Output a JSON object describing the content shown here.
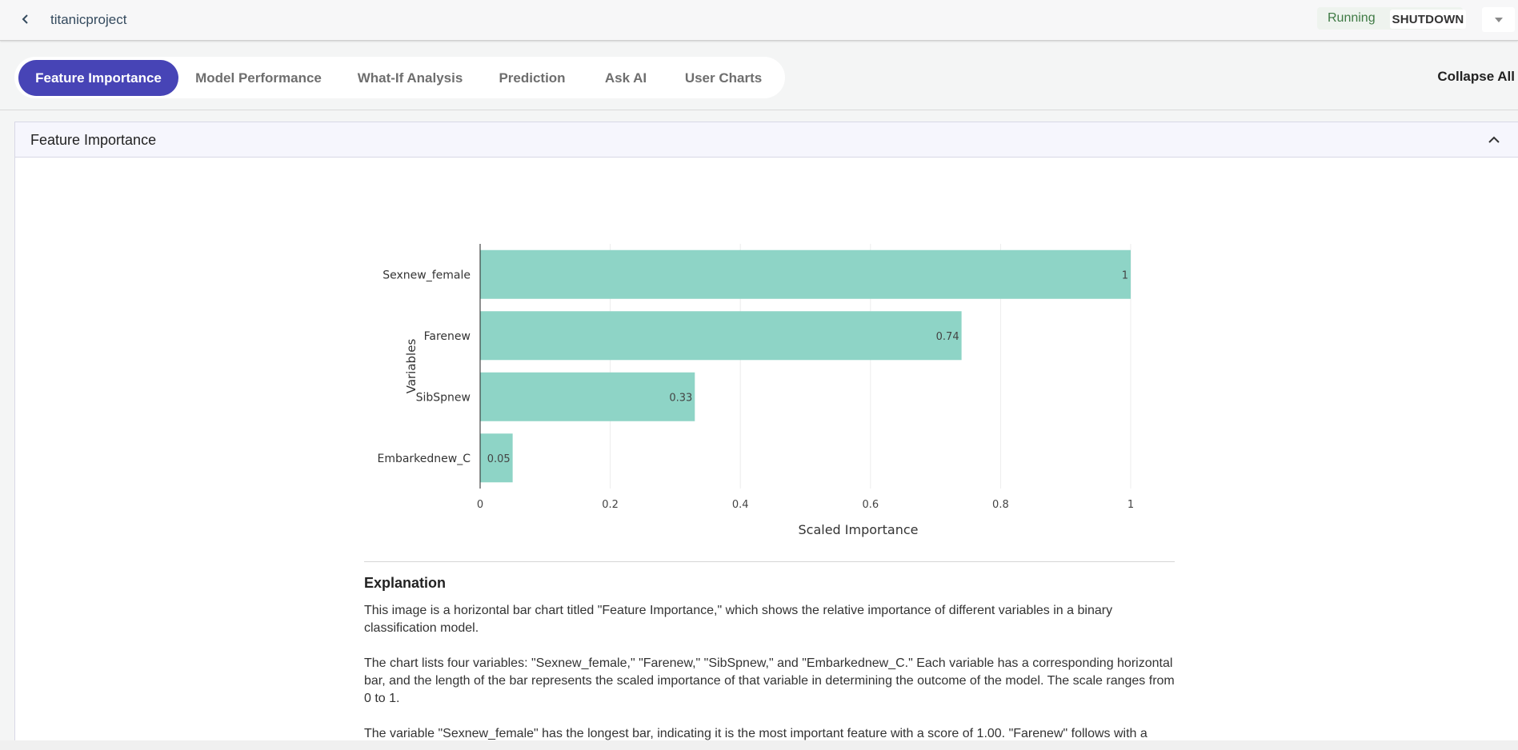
{
  "app": {
    "project_title": "titanicproject",
    "status": "Running",
    "shutdown_label": "SHUTDOWN"
  },
  "tabs": [
    {
      "label": "Feature Importance",
      "active": true
    },
    {
      "label": "Model Performance",
      "active": false
    },
    {
      "label": "What-If Analysis",
      "active": false
    },
    {
      "label": "Prediction",
      "active": false
    },
    {
      "label": "Ask AI",
      "active": false
    },
    {
      "label": "User Charts",
      "active": false
    }
  ],
  "collapse_all_label": "Collapse All",
  "panel": {
    "title": "Feature Importance"
  },
  "chart_data": {
    "type": "bar",
    "orientation": "horizontal",
    "categories": [
      "Sexnew_female",
      "Farenew",
      "SibSpnew",
      "Embarkednew_C"
    ],
    "values": [
      1,
      0.74,
      0.33,
      0.05
    ],
    "data_labels": [
      "1",
      "0.74",
      "0.33",
      "0.05"
    ],
    "xlabel": "Scaled Importance",
    "ylabel": "Variables",
    "xlim": [
      0,
      1
    ],
    "xticks": [
      "0",
      "0.2",
      "0.4",
      "0.6",
      "0.8",
      "1"
    ],
    "grid": true,
    "bar_color": "#8ed4c6"
  },
  "explanation": {
    "title": "Explanation",
    "paragraphs": [
      "This image is a horizontal bar chart titled \"Feature Importance,\" which shows the relative importance of different variables in a binary classification model.",
      "The chart lists four variables: \"Sexnew_female,\" \"Farenew,\" \"SibSpnew,\" and \"Embarkednew_C.\" Each variable has a corresponding horizontal bar, and the length of the bar represents the scaled importance of that variable in determining the outcome of the model. The scale ranges from 0 to 1.",
      "The variable \"Sexnew_female\" has the longest bar, indicating it is the most important feature with a score of 1.00. \"Farenew\" follows with a"
    ]
  },
  "colors": {
    "accent": "#4744b6",
    "running": "#3f7a44",
    "bar": "#8ed4c6"
  }
}
